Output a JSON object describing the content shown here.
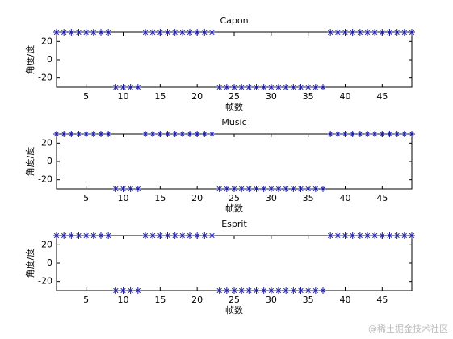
{
  "chart_data": [
    {
      "type": "scatter",
      "title": "Capon",
      "xlabel": "帧数",
      "ylabel": "角度/度",
      "color": "#1f1fa0",
      "x": [
        1,
        2,
        3,
        4,
        5,
        6,
        7,
        8,
        9,
        10,
        11,
        12,
        13,
        14,
        15,
        16,
        17,
        18,
        19,
        20,
        21,
        22,
        23,
        24,
        25,
        26,
        27,
        28,
        29,
        30,
        31,
        32,
        33,
        34,
        35,
        36,
        37,
        38,
        39,
        40,
        41,
        42,
        43,
        44,
        45,
        46,
        47,
        48,
        49
      ],
      "values": [
        30,
        30,
        30,
        30,
        30,
        30,
        30,
        30,
        -30,
        -30,
        -30,
        -30,
        30,
        30,
        30,
        30,
        30,
        30,
        30,
        30,
        30,
        30,
        -30,
        -30,
        -30,
        -30,
        -30,
        -30,
        -30,
        -30,
        -30,
        -30,
        -30,
        -30,
        -30,
        -30,
        -30,
        30,
        30,
        30,
        30,
        30,
        30,
        30,
        30,
        30,
        30,
        30,
        30
      ],
      "xlim": [
        1,
        49
      ],
      "ylim": [
        -30,
        30
      ],
      "xticks": [
        5,
        10,
        15,
        20,
        25,
        30,
        35,
        40,
        45
      ],
      "yticks": [
        -20,
        0,
        20
      ]
    },
    {
      "type": "scatter",
      "title": "Music",
      "xlabel": "帧数",
      "ylabel": "角度/度",
      "color": "#1f1fa0",
      "x": [
        1,
        2,
        3,
        4,
        5,
        6,
        7,
        8,
        9,
        10,
        11,
        12,
        13,
        14,
        15,
        16,
        17,
        18,
        19,
        20,
        21,
        22,
        23,
        24,
        25,
        26,
        27,
        28,
        29,
        30,
        31,
        32,
        33,
        34,
        35,
        36,
        37,
        38,
        39,
        40,
        41,
        42,
        43,
        44,
        45,
        46,
        47,
        48,
        49
      ],
      "values": [
        30,
        30,
        30,
        30,
        30,
        30,
        30,
        30,
        -30,
        -30,
        -30,
        -30,
        30,
        30,
        30,
        30,
        30,
        30,
        30,
        30,
        30,
        30,
        -30,
        -30,
        -30,
        -30,
        -30,
        -30,
        -30,
        -30,
        -30,
        -30,
        -30,
        -30,
        -30,
        -30,
        -30,
        30,
        30,
        30,
        30,
        30,
        30,
        30,
        30,
        30,
        30,
        30,
        30
      ],
      "xlim": [
        1,
        49
      ],
      "ylim": [
        -30,
        30
      ],
      "xticks": [
        5,
        10,
        15,
        20,
        25,
        30,
        35,
        40,
        45
      ],
      "yticks": [
        -20,
        0,
        20
      ]
    },
    {
      "type": "scatter",
      "title": "Esprit",
      "xlabel": "帧数",
      "ylabel": "角度/度",
      "color": "#1f1fa0",
      "x": [
        1,
        2,
        3,
        4,
        5,
        6,
        7,
        8,
        9,
        10,
        11,
        12,
        13,
        14,
        15,
        16,
        17,
        18,
        19,
        20,
        21,
        22,
        23,
        24,
        25,
        26,
        27,
        28,
        29,
        30,
        31,
        32,
        33,
        34,
        35,
        36,
        37,
        38,
        39,
        40,
        41,
        42,
        43,
        44,
        45,
        46,
        47,
        48,
        49
      ],
      "values": [
        30,
        30,
        30,
        30,
        30,
        30,
        30,
        30,
        -30,
        -30,
        -30,
        -30,
        30,
        30,
        30,
        30,
        30,
        30,
        30,
        30,
        30,
        30,
        -30,
        -30,
        -30,
        -30,
        -30,
        -30,
        -30,
        -30,
        -30,
        -30,
        -30,
        -30,
        -30,
        -30,
        -30,
        30,
        30,
        30,
        30,
        30,
        30,
        30,
        30,
        30,
        30,
        30,
        30
      ],
      "xlim": [
        1,
        49
      ],
      "ylim": [
        -30,
        30
      ],
      "xticks": [
        5,
        10,
        15,
        20,
        25,
        30,
        35,
        40,
        45
      ],
      "yticks": [
        -20,
        0,
        20
      ]
    }
  ],
  "watermark": "@稀土掘金技术社区"
}
